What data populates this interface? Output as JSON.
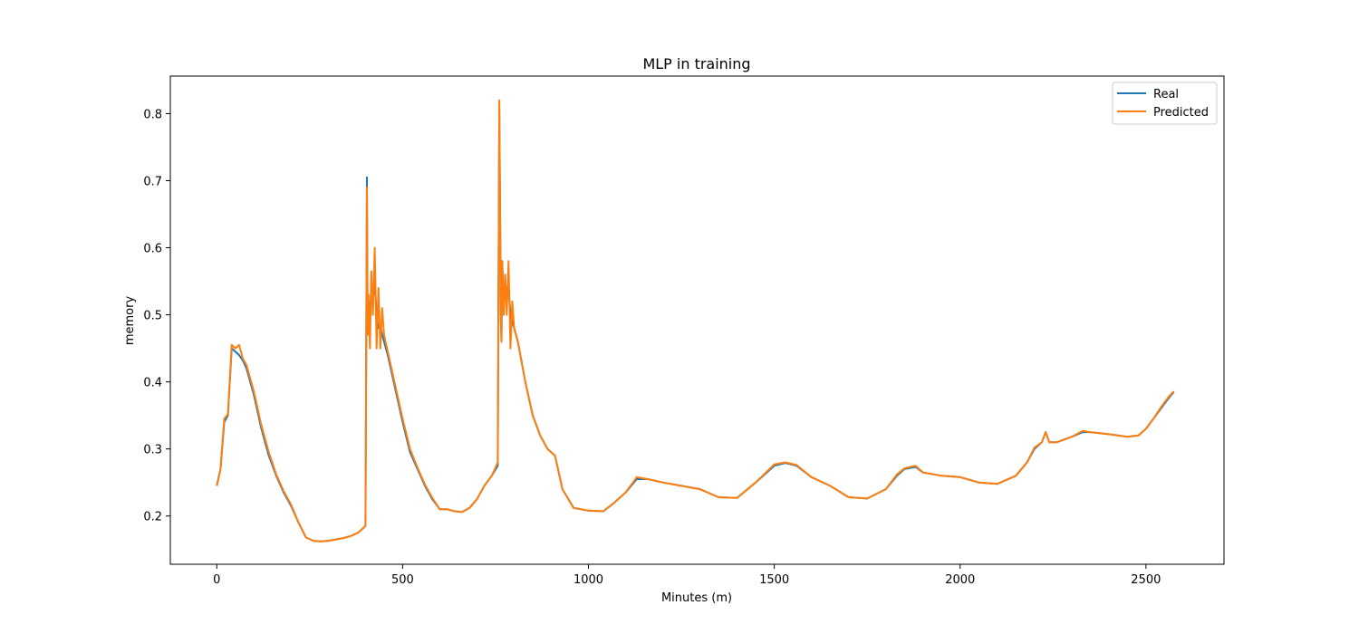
{
  "chart_data": {
    "type": "line",
    "title": "MLP in training",
    "xlabel": "Minutes (m)",
    "ylabel": "memory",
    "xlim": [
      -125,
      2710
    ],
    "ylim": [
      0.128,
      0.856
    ],
    "xticks": [
      0,
      500,
      1000,
      1500,
      2000,
      2500
    ],
    "yticks": [
      0.2,
      0.3,
      0.4,
      0.5,
      0.6,
      0.7,
      0.8
    ],
    "grid": false,
    "legend_position": "top-right",
    "series": [
      {
        "name": "Real",
        "color": "#1f77b4",
        "x": [
          0,
          10,
          20,
          30,
          40,
          50,
          60,
          70,
          80,
          100,
          120,
          140,
          160,
          180,
          200,
          220,
          240,
          260,
          280,
          300,
          320,
          340,
          360,
          380,
          400,
          404,
          406,
          408,
          412,
          416,
          420,
          425,
          430,
          435,
          440,
          445,
          450,
          460,
          480,
          500,
          520,
          540,
          560,
          580,
          600,
          620,
          640,
          660,
          680,
          700,
          720,
          740,
          756,
          760,
          764,
          766,
          768,
          772,
          776,
          780,
          785,
          790,
          795,
          800,
          810,
          830,
          850,
          870,
          890,
          910,
          930,
          960,
          1000,
          1040,
          1070,
          1100,
          1130,
          1160,
          1200,
          1250,
          1300,
          1350,
          1400,
          1450,
          1500,
          1530,
          1560,
          1600,
          1650,
          1700,
          1750,
          1800,
          1830,
          1850,
          1880,
          1900,
          1950,
          2000,
          2050,
          2100,
          2150,
          2180,
          2200,
          2220,
          2230,
          2240,
          2260,
          2300,
          2330,
          2350,
          2400,
          2450,
          2480,
          2500,
          2520,
          2540,
          2560,
          2575
        ],
        "y": [
          0.245,
          0.27,
          0.34,
          0.35,
          0.45,
          0.445,
          0.44,
          0.432,
          0.42,
          0.38,
          0.33,
          0.29,
          0.26,
          0.235,
          0.215,
          0.19,
          0.168,
          0.163,
          0.162,
          0.163,
          0.165,
          0.167,
          0.17,
          0.175,
          0.185,
          0.705,
          0.48,
          0.52,
          0.49,
          0.55,
          0.52,
          0.55,
          0.5,
          0.48,
          0.485,
          0.47,
          0.46,
          0.44,
          0.39,
          0.34,
          0.295,
          0.27,
          0.245,
          0.225,
          0.21,
          0.21,
          0.207,
          0.206,
          0.212,
          0.225,
          0.245,
          0.26,
          0.275,
          0.815,
          0.53,
          0.46,
          0.58,
          0.52,
          0.55,
          0.53,
          0.54,
          0.5,
          0.49,
          0.48,
          0.46,
          0.4,
          0.35,
          0.32,
          0.3,
          0.29,
          0.24,
          0.212,
          0.208,
          0.207,
          0.22,
          0.235,
          0.255,
          0.255,
          0.25,
          0.245,
          0.24,
          0.228,
          0.227,
          0.25,
          0.275,
          0.279,
          0.275,
          0.258,
          0.245,
          0.228,
          0.226,
          0.24,
          0.26,
          0.27,
          0.273,
          0.265,
          0.26,
          0.258,
          0.25,
          0.248,
          0.26,
          0.28,
          0.3,
          0.31,
          0.325,
          0.31,
          0.31,
          0.318,
          0.325,
          0.325,
          0.322,
          0.318,
          0.32,
          0.33,
          0.345,
          0.36,
          0.375,
          0.385
        ]
      },
      {
        "name": "Predicted",
        "color": "#ff7f0e",
        "x": [
          0,
          10,
          20,
          30,
          40,
          50,
          60,
          70,
          80,
          100,
          120,
          140,
          160,
          180,
          200,
          220,
          240,
          260,
          280,
          300,
          320,
          340,
          360,
          380,
          400,
          404,
          406,
          408,
          412,
          416,
          420,
          425,
          430,
          435,
          440,
          445,
          450,
          460,
          480,
          500,
          520,
          540,
          560,
          580,
          600,
          620,
          640,
          660,
          680,
          700,
          720,
          740,
          756,
          760,
          764,
          766,
          768,
          772,
          776,
          780,
          785,
          790,
          795,
          800,
          810,
          830,
          850,
          870,
          890,
          910,
          930,
          960,
          1000,
          1040,
          1070,
          1100,
          1130,
          1160,
          1200,
          1250,
          1300,
          1350,
          1400,
          1450,
          1500,
          1530,
          1560,
          1600,
          1650,
          1700,
          1750,
          1800,
          1830,
          1850,
          1880,
          1900,
          1950,
          2000,
          2050,
          2100,
          2150,
          2180,
          2200,
          2220,
          2230,
          2240,
          2260,
          2300,
          2330,
          2350,
          2400,
          2450,
          2480,
          2500,
          2520,
          2540,
          2560,
          2575
        ],
        "y": [
          0.245,
          0.27,
          0.345,
          0.352,
          0.455,
          0.45,
          0.455,
          0.435,
          0.425,
          0.385,
          0.335,
          0.295,
          0.262,
          0.237,
          0.217,
          0.19,
          0.168,
          0.163,
          0.162,
          0.163,
          0.165,
          0.167,
          0.17,
          0.175,
          0.185,
          0.69,
          0.47,
          0.53,
          0.45,
          0.565,
          0.5,
          0.6,
          0.45,
          0.54,
          0.45,
          0.51,
          0.47,
          0.445,
          0.395,
          0.345,
          0.3,
          0.272,
          0.247,
          0.227,
          0.21,
          0.21,
          0.207,
          0.206,
          0.212,
          0.225,
          0.245,
          0.26,
          0.28,
          0.82,
          0.5,
          0.46,
          0.58,
          0.5,
          0.56,
          0.5,
          0.58,
          0.45,
          0.52,
          0.48,
          0.46,
          0.4,
          0.35,
          0.32,
          0.3,
          0.29,
          0.24,
          0.212,
          0.208,
          0.207,
          0.22,
          0.235,
          0.258,
          0.255,
          0.25,
          0.245,
          0.24,
          0.228,
          0.227,
          0.25,
          0.277,
          0.28,
          0.276,
          0.258,
          0.245,
          0.228,
          0.226,
          0.24,
          0.262,
          0.271,
          0.275,
          0.265,
          0.26,
          0.258,
          0.25,
          0.248,
          0.26,
          0.28,
          0.302,
          0.31,
          0.325,
          0.31,
          0.31,
          0.318,
          0.327,
          0.325,
          0.322,
          0.318,
          0.32,
          0.33,
          0.345,
          0.362,
          0.377,
          0.386
        ]
      }
    ]
  }
}
